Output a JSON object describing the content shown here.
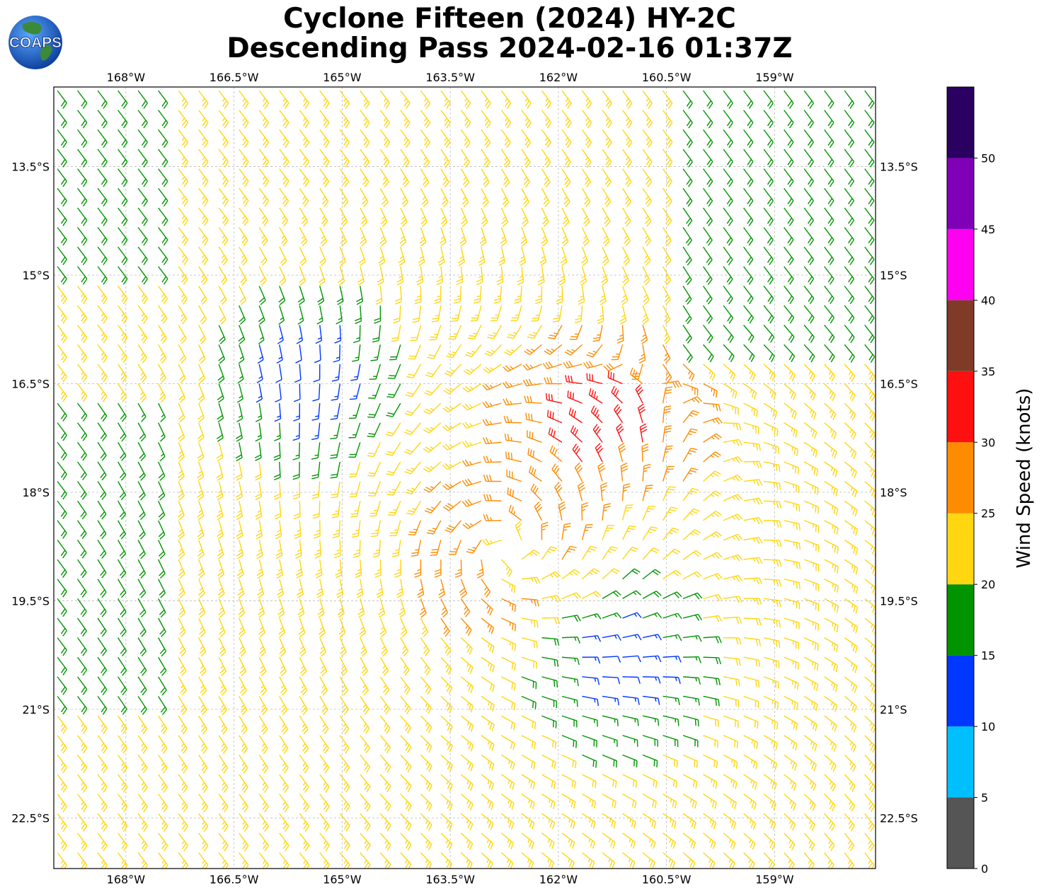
{
  "title": {
    "line1": "Cyclone Fifteen (2024) HY-2C",
    "line2": "Descending Pass 2024-02-16 01:37Z"
  },
  "logo": {
    "text": "COAPS",
    "icon": "globe-icon"
  },
  "map": {
    "lon_range": [
      -169,
      -157.6
    ],
    "lat_range": [
      -23.2,
      -12.4
    ],
    "x_ticks": [
      {
        "value": -168,
        "label": "168°W"
      },
      {
        "value": -166.5,
        "label": "166.5°W"
      },
      {
        "value": -165,
        "label": "165°W"
      },
      {
        "value": -163.5,
        "label": "163.5°W"
      },
      {
        "value": -162,
        "label": "162°W"
      },
      {
        "value": -160.5,
        "label": "160.5°W"
      },
      {
        "value": -159,
        "label": "159°W"
      }
    ],
    "y_ticks": [
      {
        "value": -13.5,
        "label": "13.5°S"
      },
      {
        "value": -15,
        "label": "15°S"
      },
      {
        "value": -16.5,
        "label": "16.5°S"
      },
      {
        "value": -18,
        "label": "18°S"
      },
      {
        "value": -19.5,
        "label": "19.5°S"
      },
      {
        "value": -21,
        "label": "21°S"
      },
      {
        "value": -22.5,
        "label": "22.5°S"
      }
    ],
    "grid": true,
    "cyclone_center": {
      "lon": -162.7,
      "lat": -18.8
    },
    "wind_regions": [
      {
        "name": "weak-core",
        "lon": -165.5,
        "lat": -16.3,
        "speed_knots": 11
      },
      {
        "name": "weak-south",
        "lon": -161.2,
        "lat": -20.4,
        "speed_knots": 12
      },
      {
        "name": "max-wind-band",
        "lon": -161.4,
        "lat": -17.0,
        "speed_knots": 33
      }
    ]
  },
  "colorbar": {
    "label": "Wind Speed (knots)",
    "bins": [
      {
        "min": 0,
        "max": 5,
        "color": "#555555"
      },
      {
        "min": 5,
        "max": 10,
        "color": "#00bfff"
      },
      {
        "min": 10,
        "max": 15,
        "color": "#0038ff"
      },
      {
        "min": 15,
        "max": 20,
        "color": "#009400"
      },
      {
        "min": 20,
        "max": 25,
        "color": "#ffd610"
      },
      {
        "min": 25,
        "max": 30,
        "color": "#ff8c00"
      },
      {
        "min": 30,
        "max": 35,
        "color": "#ff1010"
      },
      {
        "min": 35,
        "max": 40,
        "color": "#803a28"
      },
      {
        "min": 40,
        "max": 45,
        "color": "#ff00f0"
      },
      {
        "min": 45,
        "max": 50,
        "color": "#8000b8"
      },
      {
        "min": 50,
        "max": 55,
        "color": "#2a0060"
      }
    ],
    "ticks": [
      {
        "value": 0,
        "label": "0"
      },
      {
        "value": 5,
        "label": "5"
      },
      {
        "value": 10,
        "label": "10"
      },
      {
        "value": 15,
        "label": "15"
      },
      {
        "value": 20,
        "label": "20"
      },
      {
        "value": 25,
        "label": "25"
      },
      {
        "value": 30,
        "label": "30"
      },
      {
        "value": 35,
        "label": "35"
      },
      {
        "value": 40,
        "label": "40"
      },
      {
        "value": 45,
        "label": "45"
      },
      {
        "value": 50,
        "label": "50"
      }
    ]
  }
}
